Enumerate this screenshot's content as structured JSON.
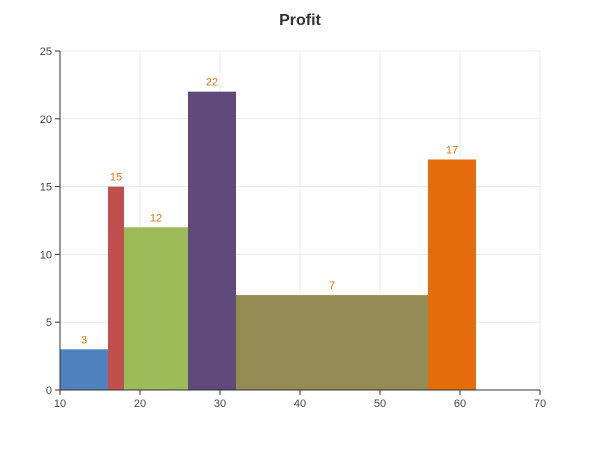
{
  "chart_data": {
    "type": "bar",
    "title": "Profit",
    "xlabel": "",
    "ylabel": "",
    "xlim": [
      10,
      70
    ],
    "ylim": [
      0,
      25
    ],
    "xticks": [
      10,
      20,
      30,
      40,
      50,
      60,
      70
    ],
    "yticks": [
      0,
      5,
      10,
      15,
      20,
      25
    ],
    "grid": true,
    "label_color": "#e8710a",
    "bars": [
      {
        "x0": 10,
        "x1": 16,
        "value": 3,
        "label": "3",
        "color": "#4f81bd"
      },
      {
        "x0": 16,
        "x1": 18,
        "value": 15,
        "label": "15",
        "color": "#c0504d"
      },
      {
        "x0": 18,
        "x1": 26,
        "value": 12,
        "label": "12",
        "color": "#9bbb59"
      },
      {
        "x0": 26,
        "x1": 32,
        "value": 22,
        "label": "22",
        "color": "#604a7b"
      },
      {
        "x0": 32,
        "x1": 56,
        "value": 7,
        "label": "7",
        "color": "#948a54"
      },
      {
        "x0": 56,
        "x1": 62,
        "value": 17,
        "label": "17",
        "color": "#e46c0a"
      }
    ]
  }
}
